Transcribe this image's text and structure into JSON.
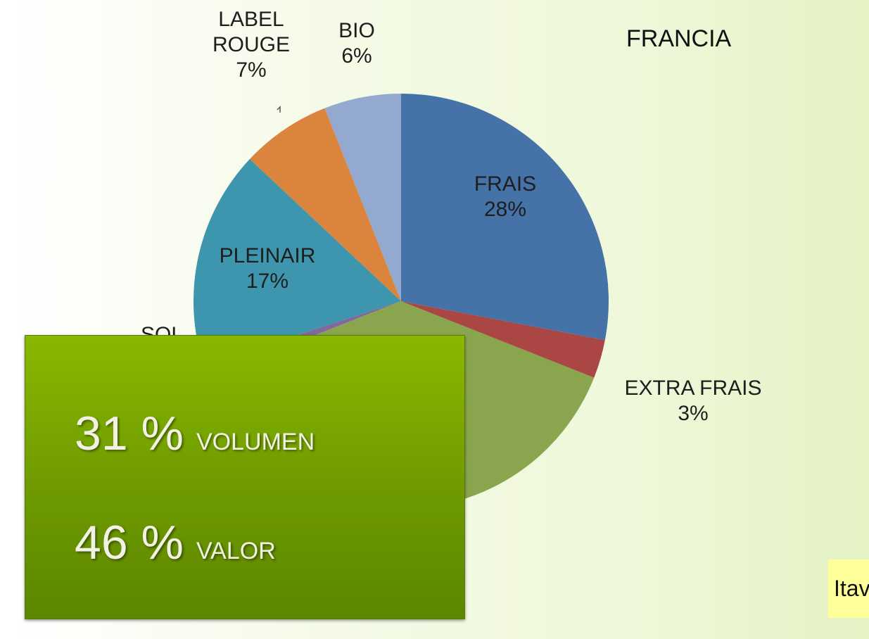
{
  "chart_data": {
    "type": "pie",
    "title": "FRANCIA",
    "categories": [
      "FRAIS",
      "EXTRA FRAIS",
      null,
      "SOL",
      "PLEINAIR",
      "LABEL ROUGE",
      "BIO"
    ],
    "values": [
      28,
      3,
      38,
      1,
      17,
      7,
      6
    ],
    "value_labels": [
      "28%",
      "3%",
      null,
      null,
      "17%",
      "7%",
      "6%"
    ],
    "colors": [
      "#4572a7",
      "#aa4643",
      "#89a54e",
      "#80699b",
      "#3d96ae",
      "#db843d",
      "#93a9cf"
    ]
  },
  "overlay": {
    "volume_value": "31 %",
    "volume_label": "VOLUMEN",
    "value_value": "46 %",
    "value_label": "VALOR"
  },
  "source": "Itavi"
}
